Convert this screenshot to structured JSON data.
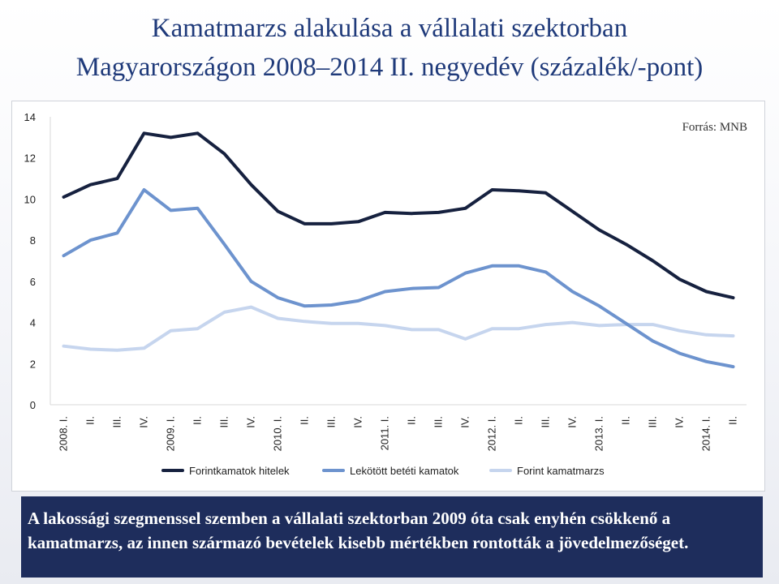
{
  "title_line1": "Kamatmarzs alakulása a vállalati szektorban",
  "title_line2": "Magyarországon 2008–2014 II. negyedév (százalék/-pont)",
  "source": "Forrás: MNB",
  "note": "A lakossági szegmenssel szemben a vállalati szektorban 2009 óta csak enyhén csökkenő a kamatmarzs, az innen származó bevételek kisebb mértékben rontották a jövedelmezőséget.",
  "chart_data": {
    "type": "line",
    "categories": [
      "2008. I.",
      "II.",
      "III.",
      "IV.",
      "2009. I.",
      "II.",
      "III.",
      "IV.",
      "2010. I.",
      "II.",
      "III.",
      "IV.",
      "2011. I.",
      "II.",
      "III.",
      "IV.",
      "2012. I.",
      "II.",
      "III.",
      "IV.",
      "2013. I.",
      "II.",
      "III.",
      "IV.",
      "2014. I.",
      "II."
    ],
    "ylim": [
      0,
      14
    ],
    "yticks": [
      0,
      2,
      4,
      6,
      8,
      10,
      12,
      14
    ],
    "grid": false,
    "legend_position": "bottom",
    "series": [
      {
        "name": "Forintkamatok hitelek",
        "color": "#16213f",
        "values": [
          10.1,
          10.7,
          11.0,
          13.2,
          13.0,
          13.2,
          12.2,
          10.7,
          9.4,
          8.8,
          8.8,
          8.9,
          9.35,
          9.3,
          9.35,
          9.55,
          10.45,
          10.4,
          10.3,
          9.4,
          8.5,
          7.8,
          7.0,
          6.1,
          5.5,
          5.2
        ]
      },
      {
        "name": "Lekötött betéti kamatok",
        "color": "#6d93ce",
        "values": [
          7.25,
          8.0,
          8.35,
          10.45,
          9.45,
          9.55,
          7.8,
          6.0,
          5.2,
          4.8,
          4.85,
          5.05,
          5.5,
          5.65,
          5.7,
          6.4,
          6.75,
          6.75,
          6.45,
          5.5,
          4.8,
          3.95,
          3.1,
          2.5,
          2.1,
          1.85
        ]
      },
      {
        "name": "Forint kamatmarzs",
        "color": "#c6d5ee",
        "values": [
          2.85,
          2.7,
          2.65,
          2.75,
          3.6,
          3.7,
          4.5,
          4.75,
          4.2,
          4.05,
          3.95,
          3.95,
          3.85,
          3.65,
          3.65,
          3.2,
          3.7,
          3.7,
          3.9,
          4.0,
          3.85,
          3.9,
          3.9,
          3.6,
          3.4,
          3.35
        ]
      }
    ]
  }
}
